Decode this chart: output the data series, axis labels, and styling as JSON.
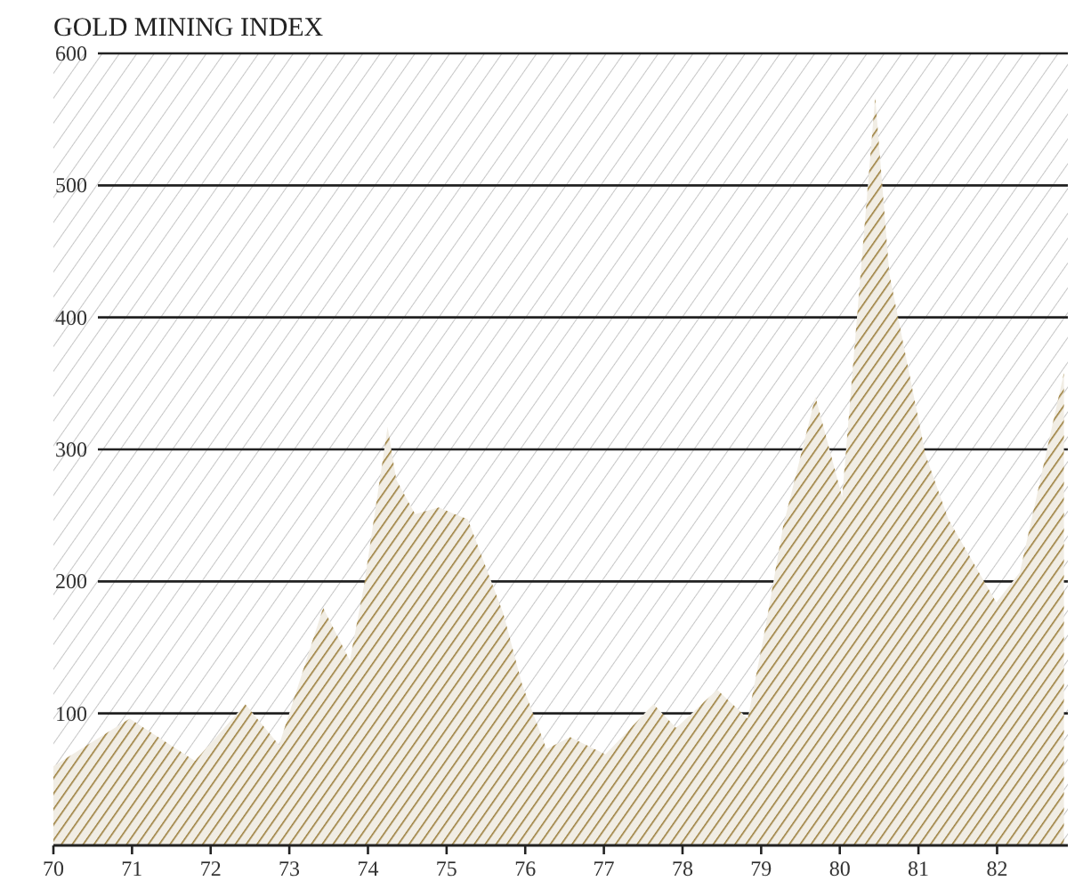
{
  "chart_data": {
    "type": "area",
    "title": "GOLD MINING INDEX",
    "x": [
      70,
      70.97,
      71.8,
      72.44,
      72.87,
      73.43,
      73.77,
      73.95,
      74.25,
      74.36,
      74.6,
      74.9,
      75.27,
      75.72,
      75.96,
      76.27,
      76.57,
      77.02,
      77.63,
      77.92,
      78.44,
      78.83,
      79.06,
      79.28,
      79.69,
      80.03,
      80.45,
      80.63,
      81.09,
      81.38,
      81.99,
      82.29,
      82.85
    ],
    "series": [
      {
        "color": "#9a7d3a",
        "values": [
          60,
          96,
          64,
          107,
          76,
          180,
          140,
          197,
          317,
          277,
          251,
          256,
          247,
          176,
          122,
          73,
          82,
          69,
          107,
          89,
          118,
          96,
          167,
          242,
          340,
          264,
          567,
          433,
          296,
          247,
          184,
          207,
          358
        ]
      }
    ],
    "xlim": [
      70,
      82.9
    ],
    "xticks": [
      70,
      71,
      72,
      73,
      74,
      75,
      76,
      77,
      78,
      79,
      80,
      81,
      82
    ],
    "ylim": [
      0,
      600
    ],
    "yticks": [
      100,
      200,
      300,
      400,
      500,
      600
    ],
    "grid": "y"
  }
}
